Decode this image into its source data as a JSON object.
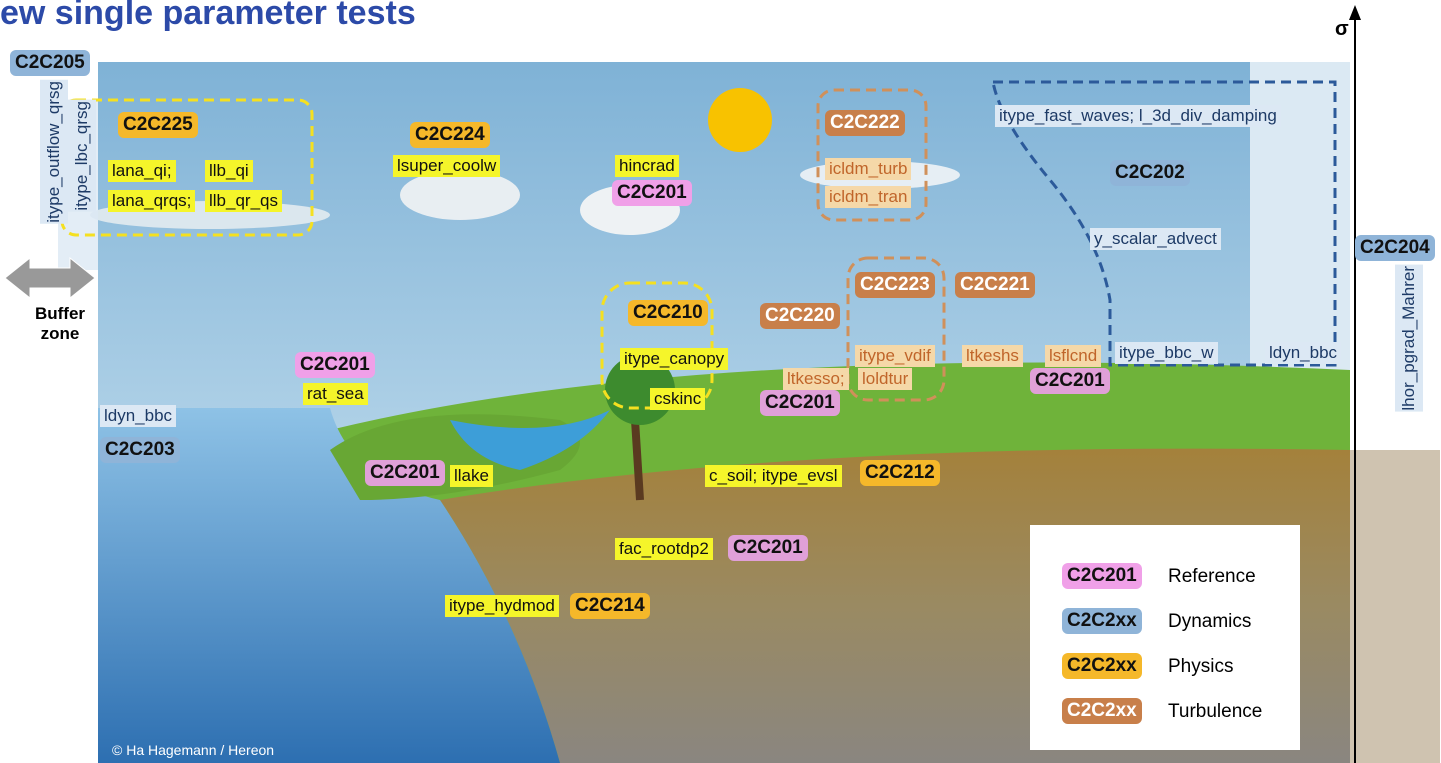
{
  "title": "ew single parameter tests",
  "axis_label": "σ",
  "buffer_zone": "Buffer zone",
  "credit": "© Ha Hagemann / Hereon",
  "groups": [
    {
      "tag": "C2C205",
      "tag_color": "#8fb4d8",
      "param_color": "#dce8f4",
      "params": [
        "itype_outflow_qrsg",
        "itype_lbc_qrsg"
      ]
    },
    {
      "tag": "C2C225",
      "tag_color": "#f5b82a",
      "param_color": "#f5f52a",
      "params": [
        "lana_qi;",
        "llb_qi",
        "lana_qrqs;",
        "llb_qr_qs"
      ]
    },
    {
      "tag": "C2C224",
      "tag_color": "#f5b82a",
      "param_color": "#f5f52a",
      "params": [
        "lsuper_coolw"
      ]
    },
    {
      "tag": "C2C201",
      "tag_color": "#f0a0e8",
      "param_color": "#f5f52a",
      "params": [
        "hincrad"
      ]
    },
    {
      "tag": "C2C222",
      "tag_color": "#c87f4a",
      "param_color": "#f5d8a8",
      "params": [
        "icldm_turb",
        "icldm_tran"
      ]
    },
    {
      "tag": "C2C202",
      "tag_color": "#8fb4d8",
      "param_color": "#dce8f4",
      "params": [
        "itype_fast_waves; l_3d_div_damping",
        "y_scalar_advect",
        "itype_bbc_w",
        "ldyn_bbc"
      ]
    },
    {
      "tag": "C2C204",
      "tag_color": "#8fb4d8",
      "param_color": "#dce8f4",
      "params": [
        "lhor_pgrad_Mahrer"
      ]
    },
    {
      "tag": "C2C210",
      "tag_color": "#f5b82a",
      "param_color": "#f5f52a",
      "params": [
        "itype_canopy",
        "cskinc"
      ]
    },
    {
      "tag": "C2C220",
      "tag_color": "#c87f4a",
      "param_color": "#f5d8a8",
      "params": [
        "ltkesso;"
      ]
    },
    {
      "tag": "C2C223",
      "tag_color": "#c87f4a",
      "param_color": "#f5d8a8",
      "params": [
        "itype_vdif",
        "loldtur"
      ]
    },
    {
      "tag": "C2C221",
      "tag_color": "#c87f4a",
      "param_color": "#f5d8a8",
      "params": [
        "ltkeshs"
      ]
    },
    {
      "tag": "C2C201",
      "tag_color": "#e0a0d8",
      "param_color": "#f5d8a8",
      "params": [
        "lsflcnd"
      ]
    },
    {
      "tag": "C2C201",
      "tag_color": "#e0a0d8",
      "param_color": "#f5d8a8",
      "params": []
    },
    {
      "tag": "C2C201",
      "tag_color": "#f0a0e8",
      "param_color": "#f5f52a",
      "params": [
        "rat_sea"
      ]
    },
    {
      "tag": "C2C203",
      "tag_color": "#8fb4d8",
      "param_color": "#dce8f4",
      "params": [
        "ldyn_bbc"
      ]
    },
    {
      "tag": "C2C201",
      "tag_color": "#e0a0d8",
      "param_color": "#f5f52a",
      "params": [
        "llake"
      ]
    },
    {
      "tag": "C2C212",
      "tag_color": "#f5b82a",
      "param_color": "#f5f52a",
      "params": [
        "c_soil; itype_evsl"
      ]
    },
    {
      "tag": "C2C201",
      "tag_color": "#e0a0d8",
      "param_color": "#f5f52a",
      "params": [
        "fac_rootdp2"
      ]
    },
    {
      "tag": "C2C214",
      "tag_color": "#f5b82a",
      "param_color": "#f5f52a",
      "params": [
        "itype_hydmod"
      ]
    }
  ],
  "legend": [
    {
      "code": "C2C201",
      "label": "Reference",
      "color": "#f0a0e8"
    },
    {
      "code": "C2C2xx",
      "label": "Dynamics",
      "color": "#8fb4d8"
    },
    {
      "code": "C2C2xx",
      "label": "Physics",
      "color": "#f5b82a"
    },
    {
      "code": "C2C2xx",
      "label": "Turbulence",
      "color": "#c87f4a"
    }
  ]
}
